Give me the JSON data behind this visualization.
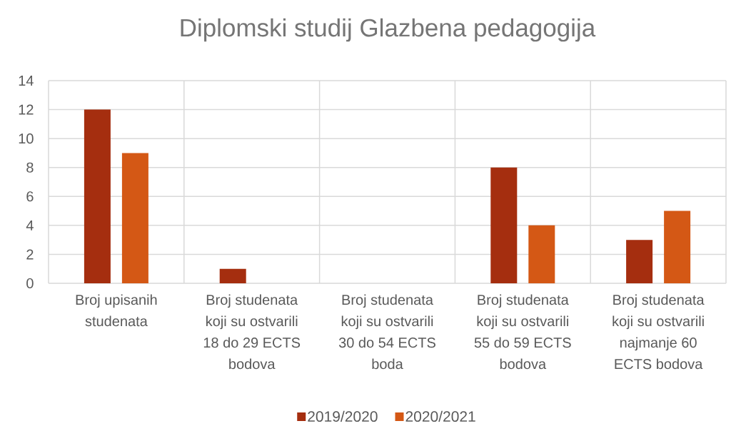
{
  "chart_data": {
    "type": "bar",
    "title": "Diplomski studij Glazbena pedagogija",
    "categories": [
      "Broj upisanih studenata",
      "Broj studenata koji su ostvarili 18 do 29 ECTS bodova",
      "Broj studenata koji su ostvarili 30 do 54 ECTS boda",
      "Broj studenata koji su ostvarili 55 do 59 ECTS bodova",
      "Broj studenata koji su ostvarili najmanje 60 ECTS bodova"
    ],
    "series": [
      {
        "name": "2019/2020",
        "color": "#a52e0f",
        "values": [
          12,
          1,
          0,
          8,
          3
        ]
      },
      {
        "name": "2020/2021",
        "color": "#d45815",
        "values": [
          9,
          0,
          0,
          4,
          5
        ]
      }
    ],
    "ylim": [
      0,
      14
    ],
    "yticks": [
      0,
      2,
      4,
      6,
      8,
      10,
      12,
      14
    ],
    "grid": true,
    "legend": "bottom"
  }
}
